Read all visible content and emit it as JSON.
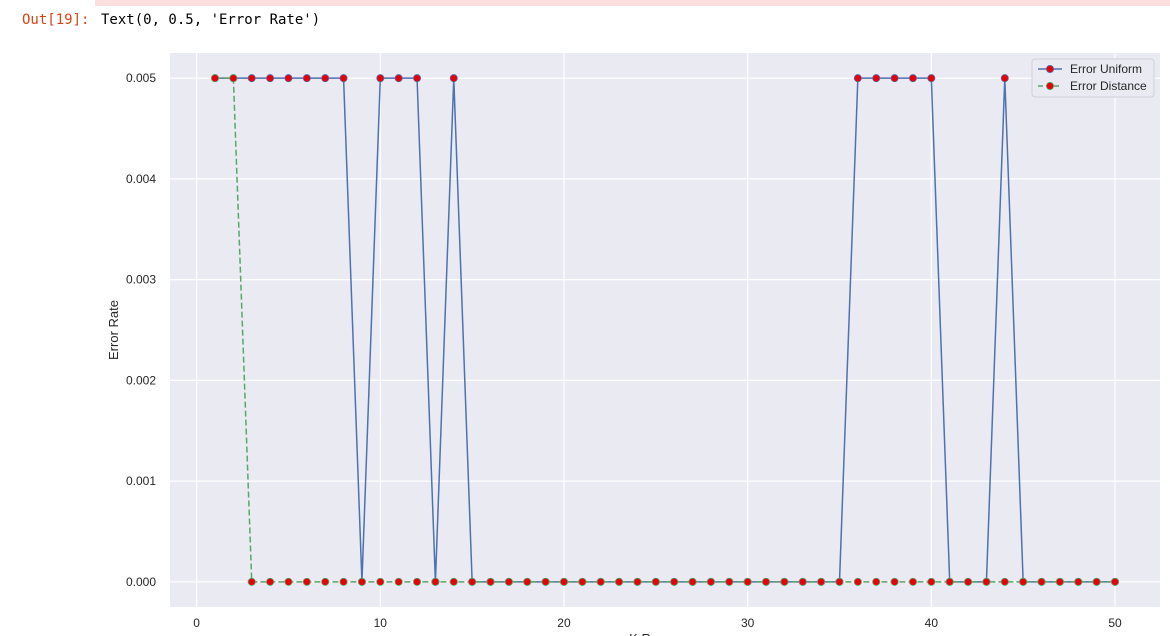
{
  "cell": {
    "prompt": "Out[19]:",
    "output": "Text(0, 0.5, 'Error Rate')"
  },
  "chart_data": {
    "type": "line",
    "title": "",
    "xlabel": "K R",
    "ylabel": "Error Rate",
    "xlim": [
      -1.45,
      52.45
    ],
    "ylim": [
      -0.00025,
      0.00525
    ],
    "xticks": [
      0,
      10,
      20,
      30,
      40,
      50
    ],
    "yticks": [
      "0.000",
      "0.001",
      "0.002",
      "0.003",
      "0.004",
      "0.005"
    ],
    "grid": true,
    "legend_position": "top-right",
    "x": [
      1,
      2,
      3,
      4,
      5,
      6,
      7,
      8,
      9,
      10,
      11,
      12,
      13,
      14,
      15,
      16,
      17,
      18,
      19,
      20,
      21,
      22,
      23,
      24,
      25,
      26,
      27,
      28,
      29,
      30,
      31,
      32,
      33,
      34,
      35,
      36,
      37,
      38,
      39,
      40,
      41,
      42,
      43,
      44,
      45,
      46,
      47,
      48,
      49,
      50
    ],
    "series": [
      {
        "name": "Error Uniform",
        "color": "#4c72b0",
        "marker_color": "#e8000b",
        "linestyle": "solid",
        "values": [
          0.005,
          0.005,
          0.005,
          0.005,
          0.005,
          0.005,
          0.005,
          0.005,
          0,
          0.005,
          0.005,
          0.005,
          0,
          0.005,
          0,
          0,
          0,
          0,
          0,
          0,
          0,
          0,
          0,
          0,
          0,
          0,
          0,
          0,
          0,
          0,
          0,
          0,
          0,
          0,
          0,
          0.005,
          0.005,
          0.005,
          0.005,
          0.005,
          0,
          0,
          0,
          0.005,
          0,
          0,
          0,
          0,
          0,
          0
        ]
      },
      {
        "name": "Error Distance",
        "color": "#55a868",
        "marker_color": "#e8000b",
        "linestyle": "dashed",
        "values": [
          0.005,
          0.005,
          0,
          0,
          0,
          0,
          0,
          0,
          0,
          0,
          0,
          0,
          0,
          0,
          0,
          0,
          0,
          0,
          0,
          0,
          0,
          0,
          0,
          0,
          0,
          0,
          0,
          0,
          0,
          0,
          0,
          0,
          0,
          0,
          0,
          0,
          0,
          0,
          0,
          0,
          0,
          0,
          0,
          0,
          0,
          0,
          0,
          0,
          0,
          0
        ]
      }
    ],
    "background": "#eaeaf2"
  }
}
